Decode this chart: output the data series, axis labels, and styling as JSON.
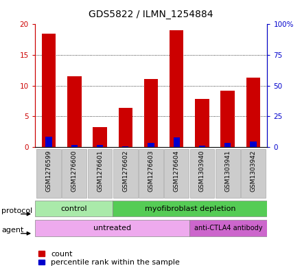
{
  "title": "GDS5822 / ILMN_1254884",
  "samples": [
    "GSM1276599",
    "GSM1276600",
    "GSM1276601",
    "GSM1276602",
    "GSM1276603",
    "GSM1276604",
    "GSM1303940",
    "GSM1303941",
    "GSM1303942"
  ],
  "counts": [
    18.5,
    11.5,
    3.3,
    6.4,
    11.1,
    19.0,
    7.8,
    9.2,
    11.3
  ],
  "percentiles": [
    8.3,
    1.8,
    1.7,
    0.4,
    3.3,
    7.9,
    1.0,
    3.2,
    4.6
  ],
  "ylim_left": [
    0,
    20
  ],
  "ylim_right": [
    0,
    100
  ],
  "yticks_left": [
    0,
    5,
    10,
    15,
    20
  ],
  "ytick_labels_left": [
    "0",
    "5",
    "10",
    "15",
    "20"
  ],
  "yticks_right": [
    0,
    25,
    50,
    75,
    100
  ],
  "ytick_labels_right": [
    "0",
    "25",
    "50",
    "75",
    "100%"
  ],
  "bar_color": "#cc0000",
  "percentile_color": "#0000cc",
  "bar_width": 0.55,
  "protocol_control_label": "control",
  "protocol_depletion_label": "myofibroblast depletion",
  "agent_untreated_label": "untreated",
  "agent_antibody_label": "anti-CTLA4 antibody",
  "color_control": "#aaeaaa",
  "color_depletion": "#55cc55",
  "color_untreated": "#eeaaee",
  "color_antibody": "#cc66cc",
  "legend_count_label": "count",
  "legend_percentile_label": "percentile rank within the sample",
  "sample_box_color": "#cccccc",
  "title_fontsize": 10,
  "tick_fontsize": 7.5,
  "label_fontsize": 8,
  "annotation_fontsize": 8,
  "sample_fontsize": 6.5
}
